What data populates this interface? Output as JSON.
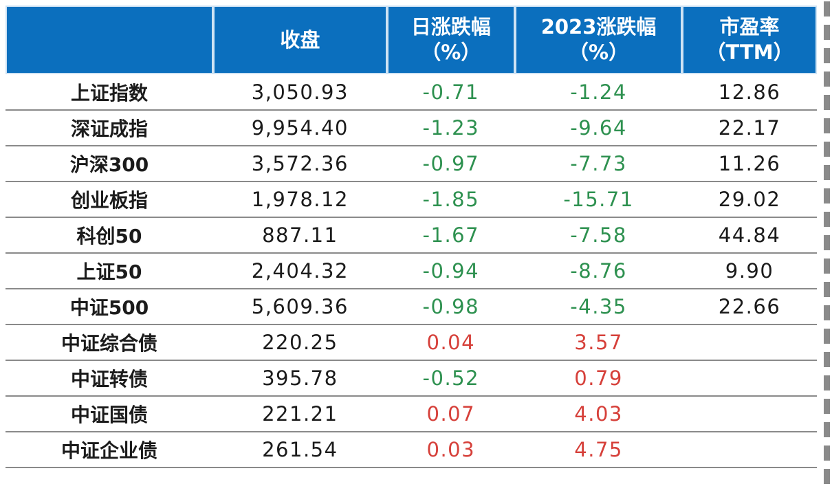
{
  "colors": {
    "header_bg": "#0B6FBE",
    "header_text": "#FFFFFF",
    "negative_value": "#2E9150",
    "positive_value": "#D6403A",
    "neutral_text": "#1b1b1b",
    "grid_line": "#8a8a8a"
  },
  "header": {
    "columns": [
      {
        "line1": "",
        "line2": ""
      },
      {
        "line1": "收盘",
        "line2": ""
      },
      {
        "line1": "日涨跌幅",
        "line2": "（%）"
      },
      {
        "line1": "2023涨跌幅",
        "line2": "（%）"
      },
      {
        "line1": "市盈率",
        "line2": "（TTM）"
      }
    ]
  },
  "chart_data": {
    "type": "table",
    "columns": [
      "",
      "收盘",
      "日涨跌幅（%）",
      "2023涨跌幅（%）",
      "市盈率（TTM）"
    ],
    "rows": [
      {
        "name": "上证指数",
        "close": "3,050.93",
        "daily_chg": "-0.71",
        "daily_color": "green",
        "ytd_chg": "-1.24",
        "ytd_color": "green",
        "pe": "12.86"
      },
      {
        "name": "深证成指",
        "close": "9,954.40",
        "daily_chg": "-1.23",
        "daily_color": "green",
        "ytd_chg": "-9.64",
        "ytd_color": "green",
        "pe": "22.17"
      },
      {
        "name": "沪深300",
        "close": "3,572.36",
        "daily_chg": "-0.97",
        "daily_color": "green",
        "ytd_chg": "-7.73",
        "ytd_color": "green",
        "pe": "11.26"
      },
      {
        "name": "创业板指",
        "close": "1,978.12",
        "daily_chg": "-1.85",
        "daily_color": "green",
        "ytd_chg": "-15.71",
        "ytd_color": "green",
        "pe": "29.02"
      },
      {
        "name": "科创50",
        "close": "887.11",
        "daily_chg": "-1.67",
        "daily_color": "green",
        "ytd_chg": "-7.58",
        "ytd_color": "green",
        "pe": "44.84"
      },
      {
        "name": "上证50",
        "close": "2,404.32",
        "daily_chg": "-0.94",
        "daily_color": "green",
        "ytd_chg": "-8.76",
        "ytd_color": "green",
        "pe": "9.90"
      },
      {
        "name": "中证500",
        "close": "5,609.36",
        "daily_chg": "-0.98",
        "daily_color": "green",
        "ytd_chg": "-4.35",
        "ytd_color": "green",
        "pe": "22.66"
      },
      {
        "name": "中证综合债",
        "close": "220.25",
        "daily_chg": "0.04",
        "daily_color": "red",
        "ytd_chg": "3.57",
        "ytd_color": "red",
        "pe": ""
      },
      {
        "name": "中证转债",
        "close": "395.78",
        "daily_chg": "-0.52",
        "daily_color": "green",
        "ytd_chg": "0.79",
        "ytd_color": "red",
        "pe": ""
      },
      {
        "name": "中证国债",
        "close": "221.21",
        "daily_chg": "0.07",
        "daily_color": "red",
        "ytd_chg": "4.03",
        "ytd_color": "red",
        "pe": ""
      },
      {
        "name": "中证企业债",
        "close": "261.54",
        "daily_chg": "0.03",
        "daily_color": "red",
        "ytd_chg": "4.75",
        "ytd_color": "red",
        "pe": ""
      }
    ]
  }
}
